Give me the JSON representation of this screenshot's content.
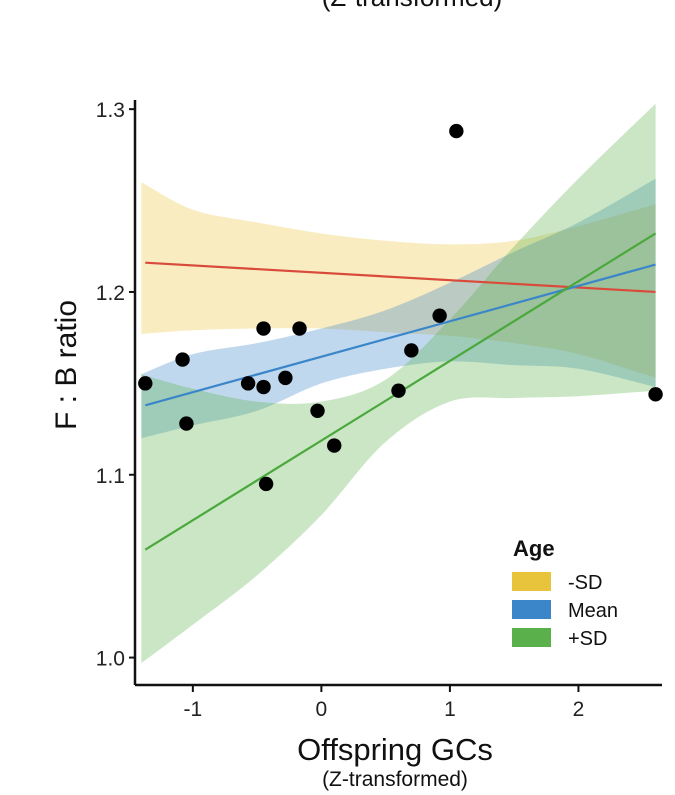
{
  "chart_data": {
    "type": "scatter",
    "top_caption": "(Z-transformed)",
    "xlabel": "Offspring GCs",
    "xlabel_sub": "(Z-transformed)",
    "ylabel": "F : B ratio",
    "xlim": [
      -1.45,
      2.65
    ],
    "ylim": [
      0.985,
      1.305
    ],
    "x_ticks": [
      -1,
      0,
      1,
      2
    ],
    "x_tick_labels": [
      "-1",
      "0",
      "1",
      "2"
    ],
    "y_ticks": [
      1.0,
      1.1,
      1.2,
      1.3
    ],
    "y_tick_labels": [
      "1.0",
      "1.1",
      "1.2",
      "1.3"
    ],
    "grid": false,
    "legend_position": "bottom-right",
    "legend_title": "Age",
    "points": [
      {
        "x": -1.37,
        "y": 1.15
      },
      {
        "x": -1.08,
        "y": 1.163
      },
      {
        "x": -1.05,
        "y": 1.128
      },
      {
        "x": -0.57,
        "y": 1.15
      },
      {
        "x": -0.45,
        "y": 1.18
      },
      {
        "x": -0.45,
        "y": 1.148
      },
      {
        "x": -0.43,
        "y": 1.095
      },
      {
        "x": -0.28,
        "y": 1.153
      },
      {
        "x": -0.17,
        "y": 1.18
      },
      {
        "x": -0.03,
        "y": 1.135
      },
      {
        "x": 0.1,
        "y": 1.116
      },
      {
        "x": 0.6,
        "y": 1.146
      },
      {
        "x": 0.7,
        "y": 1.168
      },
      {
        "x": 0.92,
        "y": 1.187
      },
      {
        "x": 1.05,
        "y": 1.288
      },
      {
        "x": 2.6,
        "y": 1.144
      }
    ],
    "series": [
      {
        "name": "-SD",
        "color": "#e8c33c",
        "line_color": "#d94a3a",
        "line": {
          "x": [
            -1.37,
            2.6
          ],
          "y": [
            1.216,
            1.2
          ]
        },
        "band": {
          "x": [
            -1.4,
            -1.0,
            -0.5,
            0.0,
            0.5,
            1.0,
            1.5,
            2.0,
            2.6
          ],
          "upper": [
            1.26,
            1.245,
            1.238,
            1.232,
            1.228,
            1.226,
            1.228,
            1.236,
            1.248
          ],
          "lower": [
            1.177,
            1.179,
            1.18,
            1.18,
            1.178,
            1.176,
            1.172,
            1.166,
            1.153
          ]
        }
      },
      {
        "name": "Mean",
        "color": "#3b86c9",
        "line_color": "#3b86c9",
        "line": {
          "x": [
            -1.37,
            2.6
          ],
          "y": [
            1.138,
            1.215
          ]
        },
        "band": {
          "x": [
            -1.4,
            -1.0,
            -0.5,
            0.0,
            0.5,
            1.0,
            1.5,
            2.0,
            2.6
          ],
          "upper": [
            1.155,
            1.166,
            1.172,
            1.18,
            1.19,
            1.205,
            1.222,
            1.238,
            1.262
          ],
          "lower": [
            1.12,
            1.127,
            1.135,
            1.15,
            1.158,
            1.162,
            1.16,
            1.158,
            1.148
          ]
        }
      },
      {
        "name": "+SD",
        "color": "#5ab04a",
        "line_color": "#4aa83c",
        "line": {
          "x": [
            -1.37,
            2.6
          ],
          "y": [
            1.059,
            1.232
          ]
        },
        "band": {
          "x": [
            -1.4,
            -1.0,
            -0.5,
            0.0,
            0.5,
            1.0,
            1.5,
            2.0,
            2.6
          ],
          "upper": [
            1.155,
            1.147,
            1.14,
            1.14,
            1.152,
            1.185,
            1.225,
            1.262,
            1.303
          ],
          "lower": [
            0.997,
            1.018,
            1.045,
            1.078,
            1.118,
            1.14,
            1.142,
            1.143,
            1.146
          ]
        }
      }
    ]
  }
}
